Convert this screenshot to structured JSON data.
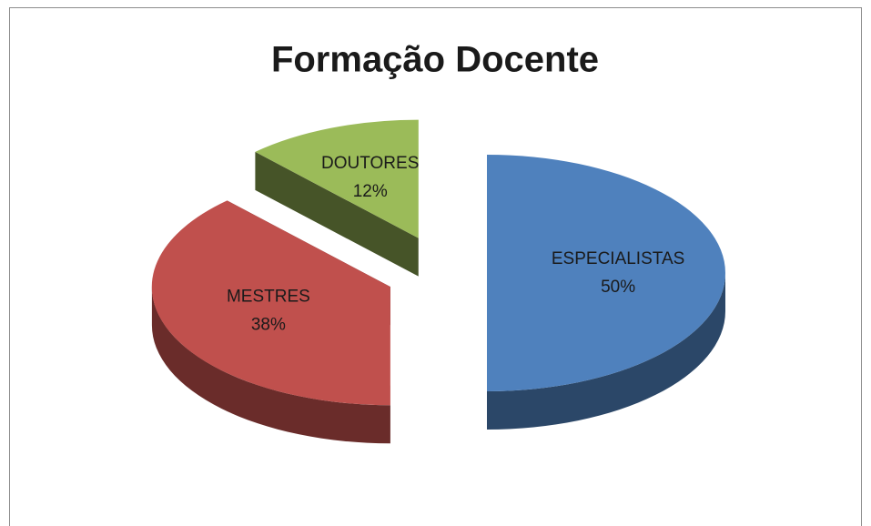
{
  "chart_data": {
    "type": "pie",
    "title": "Formação Docente",
    "categories": [
      "ESPECIALISTAS",
      "MESTRES",
      "DOUTORES"
    ],
    "values": [
      50,
      38,
      12
    ],
    "value_labels": [
      "50%",
      "38%",
      "12%"
    ],
    "colors": [
      "#4f81bd",
      "#c0504d",
      "#9bbb59"
    ]
  }
}
